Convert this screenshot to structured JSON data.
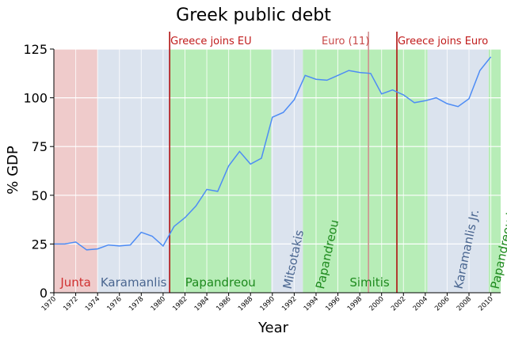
{
  "chart_data": {
    "type": "line",
    "title": "Greek public debt",
    "xlabel": "Year",
    "ylabel": "% GDP",
    "xlim": [
      1970,
      2010.9
    ],
    "ylim": [
      0,
      125
    ],
    "y_ticks": [
      0,
      25,
      50,
      75,
      100,
      125
    ],
    "x_ticks": [
      1970,
      1972,
      1974,
      1976,
      1978,
      1980,
      1982,
      1984,
      1986,
      1988,
      1990,
      1992,
      1994,
      1996,
      1998,
      2000,
      2002,
      2004,
      2006,
      2008,
      2010
    ],
    "grid": true,
    "line_color": "#4d8cf5",
    "series": [
      {
        "x": [
          1970,
          1971,
          1972,
          1973,
          1974,
          1975,
          1976,
          1977,
          1978,
          1979,
          1980,
          1981,
          1982,
          1983,
          1984,
          1985,
          1986,
          1987,
          1988,
          1989,
          1990,
          1991,
          1992,
          1993,
          1994,
          1995,
          1996,
          1997,
          1998,
          1999,
          2000,
          2001,
          2002,
          2003,
          2004,
          2005,
          2006,
          2007,
          2008,
          2009,
          2010
        ],
        "values": [
          25,
          25,
          26,
          22,
          22.5,
          24.5,
          24,
          24.5,
          31,
          29,
          24,
          34,
          38.5,
          44.5,
          53,
          52,
          65,
          72.5,
          66,
          69,
          90,
          92.5,
          99,
          111.5,
          109.5,
          109,
          111.5,
          114,
          113,
          112.5,
          102,
          104,
          101.5,
          97.5,
          98.5,
          100,
          97,
          95.5,
          99.5,
          114,
          121
        ]
      }
    ],
    "eras": [
      {
        "label": "Junta",
        "start": 1970,
        "end": 1974,
        "color": "#efcbcb",
        "text_color": "#d03030",
        "rotated": false
      },
      {
        "label": "Karamanlis",
        "start": 1974,
        "end": 1980.6,
        "color": "#dbe3ee",
        "text_color": "#4a6690",
        "rotated": false
      },
      {
        "label": "Papandreou",
        "start": 1980.6,
        "end": 1989.9,
        "color": "#b7edb7",
        "text_color": "#1e8a1e",
        "rotated": false
      },
      {
        "label": "Mitsotakis",
        "start": 1989.9,
        "end": 1992.8,
        "color": "#dbe3ee",
        "text_color": "#4a6690",
        "rotated": true
      },
      {
        "label": "Papandreou",
        "start": 1992.8,
        "end": 1995.9,
        "color": "#b7edb7",
        "text_color": "#1e8a1e",
        "rotated": true
      },
      {
        "label": "Simitis",
        "start": 1995.9,
        "end": 2004.2,
        "color": "#b7edb7",
        "text_color": "#1e8a1e",
        "rotated": false
      },
      {
        "label": "Karamanlis Jr.",
        "start": 2004.2,
        "end": 2009.8,
        "color": "#dbe3ee",
        "text_color": "#4a6690",
        "rotated": true
      },
      {
        "label": "Papandreou Jr.",
        "start": 2009.8,
        "end": 2010.9,
        "color": "#b7edb7",
        "text_color": "#1e8a1e",
        "rotated": true
      }
    ],
    "events": [
      {
        "label": "Greece joins EU",
        "year": 1980.6,
        "color": "#b01010",
        "text_color": "#c01a1a"
      },
      {
        "label": "Euro (11)",
        "year": 1998.8,
        "color": "#d09090",
        "text_color": "#c84848"
      },
      {
        "label": "Greece joins Euro",
        "year": 2001.4,
        "color": "#b01010",
        "text_color": "#c01a1a"
      }
    ]
  }
}
